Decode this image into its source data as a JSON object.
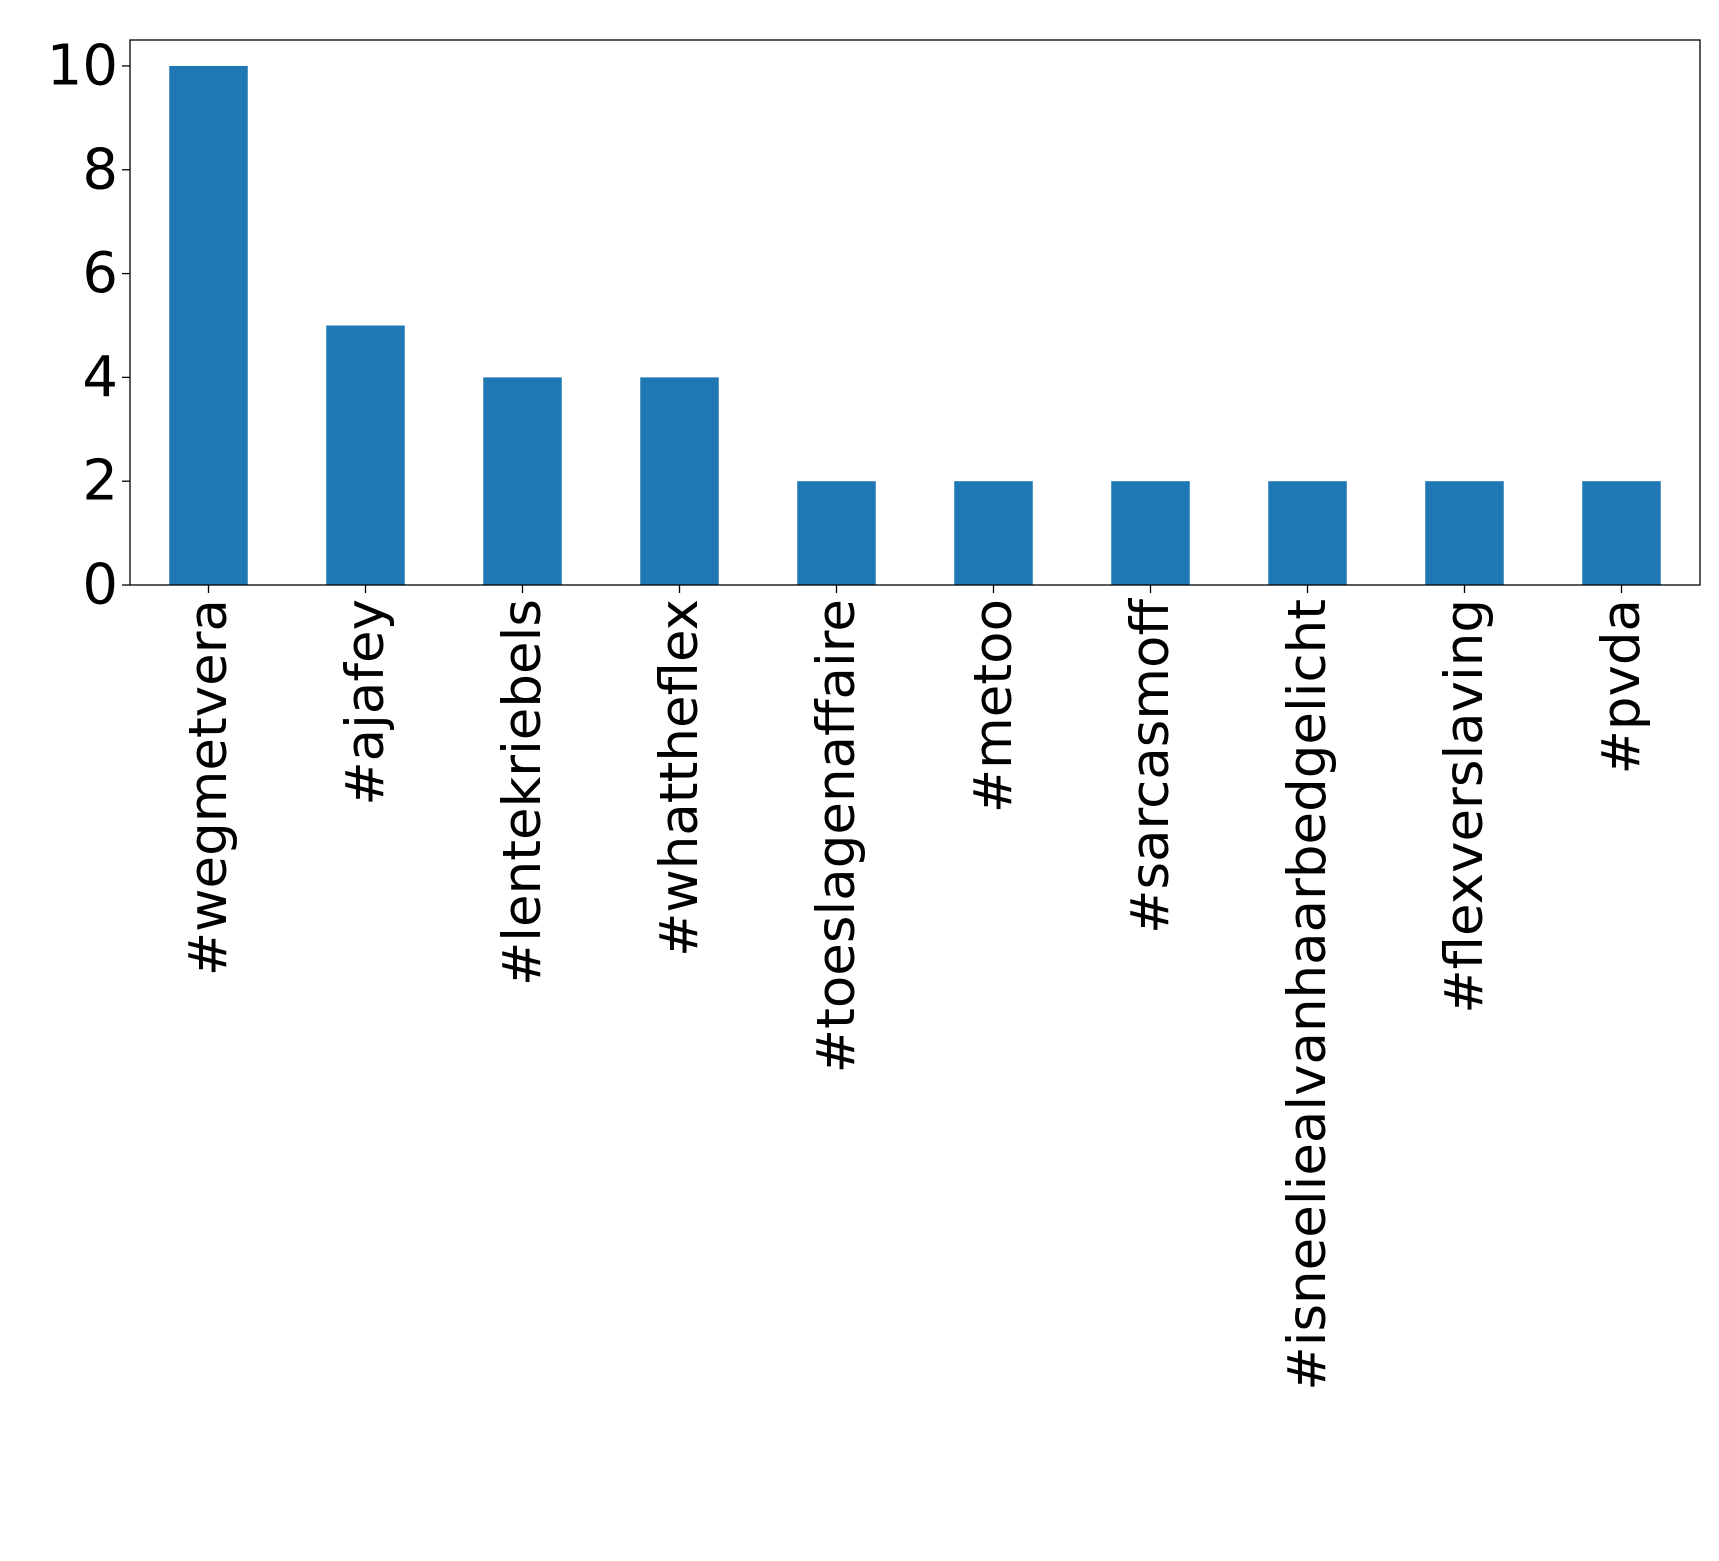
{
  "chart_data": {
    "type": "bar",
    "title": "",
    "xlabel": "",
    "ylabel": "",
    "categories": [
      "#wegmetvera",
      "#ajafey",
      "#lentekriebels",
      "#whattheflex",
      "#toeslagenaffaire",
      "#metoo",
      "#sarcasmoff",
      "#isneeliealvanhaarbedgelicht",
      "#flexverslaving",
      "#pvda"
    ],
    "values": [
      10,
      5,
      4,
      4,
      2,
      2,
      2,
      2,
      2,
      2
    ],
    "ylim": [
      0,
      10.5
    ],
    "yticks": [
      0,
      2,
      4,
      6,
      8,
      10
    ],
    "grid": false,
    "legend": "none",
    "bar_color": "#1f77b4"
  }
}
